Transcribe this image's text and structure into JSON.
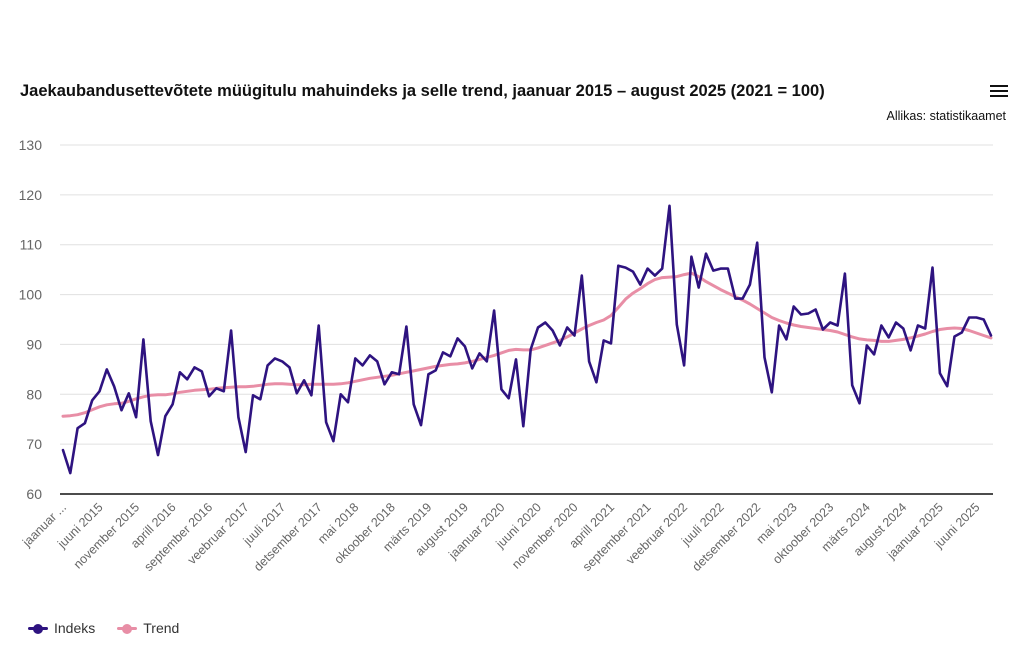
{
  "title": "Jaekaubandusettevõtete müügitulu mahuindeks ja selle trend, jaanuar 2015 – august 2025 (2021 = 100)",
  "source": "Allikas: statistikaamet",
  "menu_icon": "hamburger-menu-icon",
  "colors": {
    "indeks": "#2e1380",
    "trend": "#e88ea6",
    "grid": "#e0e0e0",
    "axis": "#111111"
  },
  "chart_data": {
    "type": "line",
    "title": "Jaekaubandusettevõtete müügitulu mahuindeks ja selle trend, jaanuar 2015 – august 2025 (2021 = 100)",
    "xlabel": "",
    "ylabel": "",
    "ylim": [
      60,
      130
    ],
    "yticks": [
      60,
      70,
      80,
      90,
      100,
      110,
      120,
      130
    ],
    "grid": true,
    "legend_position": "bottom-left",
    "x_start": "jaanuar 2015",
    "x_end": "august 2025",
    "x_tick_labels": [
      "jaanuar ...",
      "juuni 2015",
      "november 2015",
      "aprill 2016",
      "september 2016",
      "veebruar 2017",
      "juuli 2017",
      "detsember 2017",
      "mai 2018",
      "oktoober 2018",
      "märts 2019",
      "august 2019",
      "jaanuar 2020",
      "juuni 2020",
      "november 2020",
      "aprill 2021",
      "september 2021",
      "veebruar 2022",
      "juuli 2022",
      "detsember 2022",
      "mai 2023",
      "oktoober 2023",
      "märts 2024",
      "august 2024",
      "jaanuar 2025",
      "juuni 2025"
    ],
    "x_tick_every_months": 5,
    "series": [
      {
        "name": "Indeks",
        "values": [
          68.8,
          64.2,
          73.2,
          74.2,
          78.8,
          80.6,
          85.0,
          81.6,
          76.8,
          80.2,
          75.4,
          91.0,
          74.6,
          67.8,
          75.6,
          78.0,
          84.4,
          83.0,
          85.4,
          84.6,
          79.6,
          81.2,
          80.6,
          92.8,
          75.4,
          68.4,
          79.8,
          79.0,
          85.8,
          87.2,
          86.6,
          85.4,
          80.2,
          82.8,
          79.8,
          93.8,
          74.4,
          70.6,
          80.0,
          78.4,
          87.2,
          85.8,
          87.8,
          86.6,
          82.0,
          84.4,
          84.0,
          93.6,
          78.0,
          73.8,
          84.0,
          84.8,
          88.4,
          87.6,
          91.2,
          89.6,
          85.2,
          88.2,
          86.6,
          96.8,
          81.0,
          79.2,
          87.0,
          73.6,
          89.0,
          93.4,
          94.4,
          92.8,
          89.8,
          93.4,
          91.8,
          103.8,
          86.6,
          82.4,
          90.8,
          90.2,
          105.8,
          105.4,
          104.6,
          102.0,
          105.2,
          103.8,
          105.2,
          117.8,
          94.0,
          85.8,
          107.6,
          101.4,
          108.2,
          104.8,
          105.2,
          105.2,
          99.2,
          99.2,
          102.0,
          110.4,
          87.4,
          80.4,
          93.8,
          91.0,
          97.6,
          96.0,
          96.2,
          97.0,
          93.0,
          94.4,
          93.8,
          104.2,
          81.8,
          78.2,
          89.8,
          88.0,
          93.8,
          91.4,
          94.4,
          93.2,
          88.8,
          93.8,
          93.2,
          105.4,
          84.2,
          81.6,
          91.6,
          92.4,
          95.4,
          95.4,
          95.0,
          91.8
        ]
      },
      {
        "name": "Trend",
        "values": [
          75.6,
          75.7,
          75.9,
          76.3,
          76.9,
          77.5,
          77.9,
          78.1,
          78.2,
          78.6,
          79.1,
          79.5,
          79.8,
          79.9,
          79.9,
          80.1,
          80.4,
          80.6,
          80.8,
          80.9,
          81.0,
          81.2,
          81.3,
          81.4,
          81.5,
          81.5,
          81.6,
          81.8,
          82.0,
          82.1,
          82.1,
          82.0,
          81.9,
          81.9,
          82.0,
          82.0,
          82.0,
          82.0,
          82.1,
          82.3,
          82.6,
          82.9,
          83.2,
          83.4,
          83.6,
          83.8,
          84.1,
          84.4,
          84.7,
          85.0,
          85.3,
          85.6,
          85.8,
          86.0,
          86.1,
          86.3,
          86.6,
          87.0,
          87.4,
          87.8,
          88.3,
          88.8,
          89.0,
          88.9,
          88.9,
          89.3,
          89.8,
          90.3,
          90.8,
          91.5,
          92.3,
          93.1,
          93.8,
          94.4,
          94.9,
          95.8,
          97.4,
          99.1,
          100.3,
          101.2,
          102.2,
          103.0,
          103.4,
          103.5,
          103.6,
          104.0,
          104.3,
          103.6,
          102.6,
          101.8,
          101.0,
          100.3,
          99.6,
          98.9,
          98.1,
          97.2,
          96.3,
          95.4,
          94.8,
          94.3,
          93.9,
          93.6,
          93.4,
          93.2,
          93.0,
          92.8,
          92.5,
          92.0,
          91.5,
          91.1,
          90.9,
          90.8,
          90.6,
          90.6,
          90.8,
          91.0,
          91.3,
          91.7,
          92.1,
          92.6,
          93.0,
          93.2,
          93.3,
          93.2,
          92.8,
          92.3,
          91.8,
          91.3
        ]
      }
    ]
  },
  "legend": {
    "items": [
      {
        "label": "Indeks",
        "icon": "line-marker-icon"
      },
      {
        "label": "Trend",
        "icon": "line-marker-icon"
      }
    ]
  }
}
